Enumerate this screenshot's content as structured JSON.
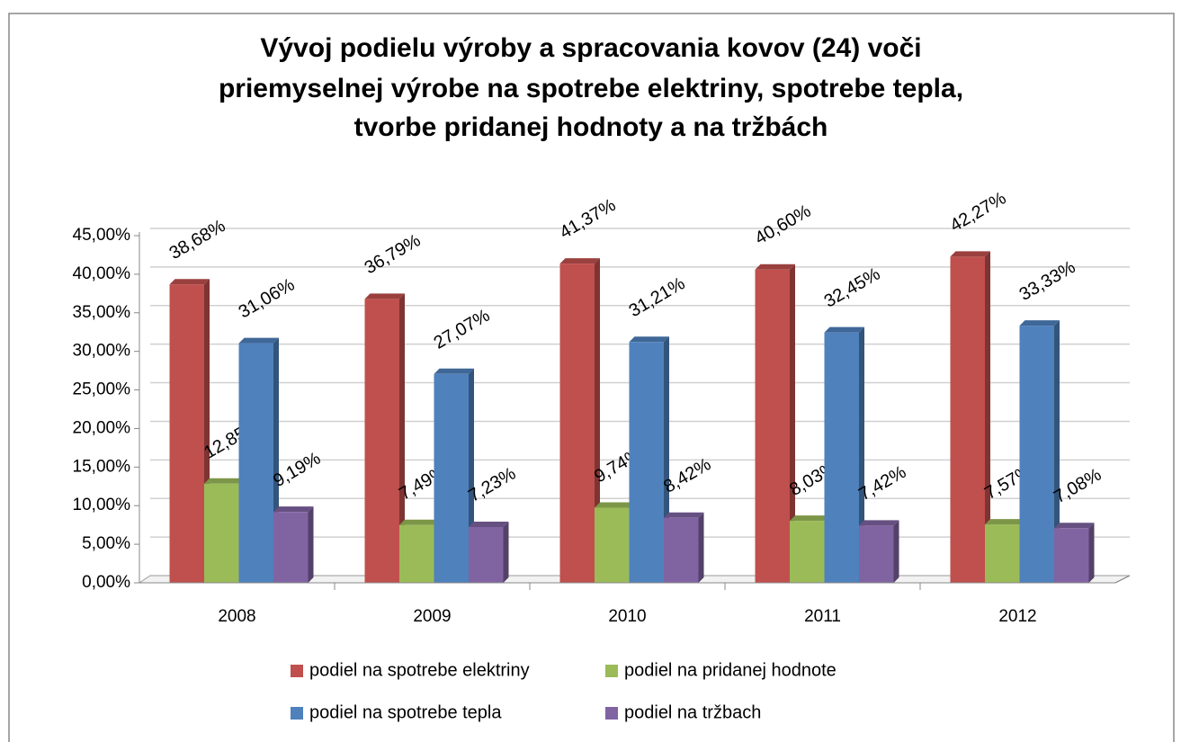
{
  "chart_data": {
    "type": "bar",
    "title": [
      "Vývoj podielu výroby a spracovania kovov (24) voči",
      "priemyselnej výrobe na spotrebe elektriny, spotrebe tepla,",
      "tvorbe pridanej hodnoty a na tržbách"
    ],
    "categories": [
      "2008",
      "2009",
      "2010",
      "2011",
      "2012"
    ],
    "series": [
      {
        "name": "podiel na spotrebe elektriny",
        "color": "#c0504d",
        "values": [
          38.68,
          36.79,
          41.37,
          40.6,
          42.27
        ],
        "value_labels": [
          "38,68%",
          "36,79%",
          "41,37%",
          "40,60%",
          "42,27%"
        ]
      },
      {
        "name": "podiel na pridanej hodnote",
        "color": "#9bbb59",
        "values": [
          12.85,
          7.49,
          9.74,
          8.03,
          7.57
        ],
        "value_labels": [
          "12,85%",
          "7,49%",
          "9,74%",
          "8,03%",
          "7,57%"
        ]
      },
      {
        "name": "podiel na spotrebe tepla",
        "color": "#4f81bd",
        "values": [
          31.06,
          27.07,
          31.21,
          32.45,
          33.33
        ],
        "value_labels": [
          "31,06%",
          "27,07%",
          "31,21%",
          "32,45%",
          "33,33%"
        ]
      },
      {
        "name": "podiel na tržbach",
        "color": "#8064a2",
        "values": [
          9.19,
          7.23,
          8.42,
          7.42,
          7.08
        ],
        "value_labels": [
          "9,19%",
          "7,23%",
          "8,42%",
          "7,42%",
          "7,08%"
        ]
      }
    ],
    "ylim": [
      0,
      45
    ],
    "yticks": [
      {
        "value": 0,
        "label": "0,00%"
      },
      {
        "value": 5,
        "label": "5,00%"
      },
      {
        "value": 10,
        "label": "10,00%"
      },
      {
        "value": 15,
        "label": "15,00%"
      },
      {
        "value": 20,
        "label": "20,00%"
      },
      {
        "value": 25,
        "label": "25,00%"
      },
      {
        "value": 30,
        "label": "30,00%"
      },
      {
        "value": 35,
        "label": "35,00%"
      },
      {
        "value": 40,
        "label": "40,00%"
      },
      {
        "value": 45,
        "label": "45,00%"
      }
    ],
    "grid": true,
    "legend": "bottom"
  }
}
